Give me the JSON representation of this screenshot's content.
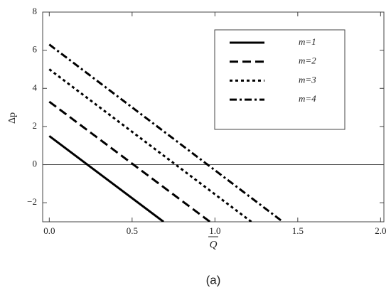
{
  "chart_data": {
    "type": "line",
    "x_label": "Q",
    "y_label": "Δp",
    "caption": "(a)",
    "xlim": [
      -0.04,
      2.02
    ],
    "ylim": [
      -3,
      8
    ],
    "xticks": [
      {
        "value": 0,
        "label": "0.0"
      },
      {
        "value": 0.5,
        "label": "0.5"
      },
      {
        "value": 1,
        "label": "1.0"
      },
      {
        "value": 1.5,
        "label": "1.5"
      },
      {
        "value": 2,
        "label": "2.0"
      }
    ],
    "yticks": [
      {
        "value": -2,
        "label": "−2"
      },
      0,
      2,
      4,
      6,
      8
    ],
    "hline": 0,
    "series": [
      {
        "name": "m=1",
        "color": "#000000",
        "dash": "solid",
        "x": [
          0,
          0.69
        ],
        "values": [
          1.5,
          -3
        ]
      },
      {
        "name": "m=2",
        "color": "#000000",
        "dash": "dashed",
        "x": [
          0,
          0.97
        ],
        "values": [
          3.3,
          -3
        ]
      },
      {
        "name": "m=3",
        "color": "#000000",
        "dash": "dotted",
        "x": [
          0,
          1.22
        ],
        "values": [
          5.0,
          -3
        ]
      },
      {
        "name": "m=4",
        "color": "#000000",
        "dash": "dashdot",
        "x": [
          0,
          1.41
        ],
        "values": [
          6.3,
          -3
        ]
      }
    ]
  }
}
